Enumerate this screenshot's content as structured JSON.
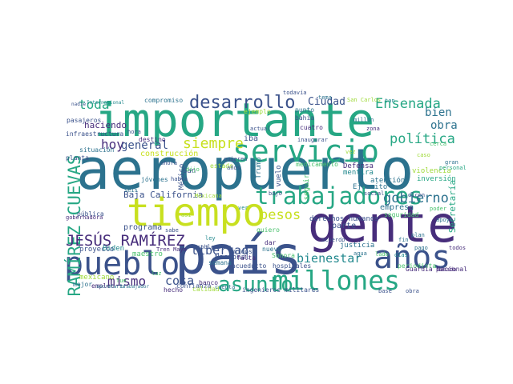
{
  "colors": {
    "background": "#ffffff",
    "yellow": "#c8e020",
    "lightgreen": "#9fda3a",
    "green": "#4ac16d",
    "teal": "#26a784",
    "blueteal": "#23898e",
    "blue": "#2c728e",
    "indigo": "#3b528b",
    "purple": "#472d7b",
    "darkpurple": "#440154"
  },
  "words": [
    "aeropuerto",
    "importante",
    "gente",
    "país",
    "tiempo",
    "pueblo",
    "millones",
    "servicio",
    "trabajadores",
    "años",
    "asunto",
    "desarrollo",
    "RAMÍREZ CUEVAS",
    "JESÚS RAMÍREZ",
    "Ensenada",
    "gobierno",
    "política",
    "pesos",
    "siempre",
    "mismo",
    "libertad",
    "bienestar",
    "cosa",
    "toda",
    "hoy",
    "general",
    "Ciudad",
    "bien",
    "obra",
    "Baja California",
    "Secretaría",
    "haciendo",
    "compromiso",
    "construcción",
    "derechos humanos",
    "Ejército",
    "empresa",
    "violencia",
    "inversión",
    "mentira",
    "Defensa",
    "parte",
    "justicia",
    "Nacional",
    "programa",
    "proyecto",
    "destino",
    "jóvenes",
    "México",
    "quiero",
    "seguir",
    "vuelo",
    "Trump",
    "iba",
    "nuevo",
    "dar",
    "periodista",
    "Guardia Nacional",
    "ingenieros militares",
    "Biden",
    "mexicano",
    "maestro",
    "banco",
    "hecho",
    "semana",
    "situación",
    "planta",
    "pública",
    "falta",
    "acueducto",
    "hospitales",
    "Sonora",
    "Unidos",
    "atención",
    "medicamento",
    "cuatro",
    "bahía",
    "mejor",
    "empleo",
    "confianza",
    "calidad",
    "Internacional",
    "pasajeros",
    "infraestructura",
    "gobernadora",
    "Tren Maya",
    "ejemplo",
    "estado",
    "quieren",
    "punto",
    "actual",
    "inaugurar",
    "todavía",
    "San Carlos",
    "San",
    "tan",
    "apoyo",
    "pasado",
    "poder",
    "personal",
    "fin",
    "seguridad",
    "dicen",
    "social",
    "acuerdo",
    "problema",
    "cuenta",
    "Mexicana",
    "secretaria",
    "trabajador",
    "nadie",
    "hora",
    "seis",
    "bajo",
    "millón",
    "dijo",
    "sabe",
    "habla",
    "ver",
    "tema",
    "caso",
    "días",
    "ley",
    "vez",
    "ahora",
    "pago",
    "todos",
    "años",
    "luz",
    "agua",
    "lado",
    "gran",
    "zona",
    "cerca",
    "plan",
    "base",
    "obra",
    "fue",
    "así",
    "más"
  ]
}
